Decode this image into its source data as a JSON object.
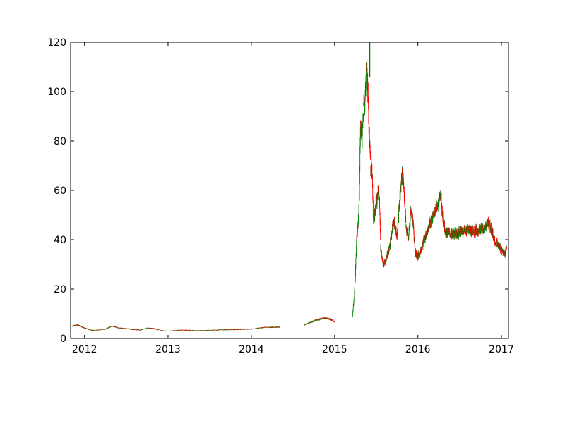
{
  "chart_data": {
    "type": "candlestick",
    "title": "",
    "xlabel": "",
    "ylabel": "",
    "ylim": [
      0,
      120
    ],
    "xlim": [
      "2011-11-01",
      "2017-02-01"
    ],
    "grid": false,
    "x_ticks": [
      "2012-01-01",
      "2013-01-01",
      "2014-01-01",
      "2015-01-01",
      "2016-01-01",
      "2017-01-01"
    ],
    "x_tick_labels": [
      "2012",
      "2013",
      "2014",
      "2015",
      "2016",
      "2017"
    ],
    "y_ticks": [
      0,
      20,
      40,
      60,
      80,
      100,
      120
    ],
    "y_tick_labels": [
      "0",
      "20",
      "40",
      "60",
      "80",
      "100",
      "120"
    ],
    "colors": {
      "up": "#008000",
      "down": "#ff0000",
      "axes": "#000000"
    },
    "series": [
      {
        "x": "2011-11-05",
        "y": 5.0
      },
      {
        "x": "2011-12-01",
        "y": 5.5
      },
      {
        "x": "2012-01-01",
        "y": 4.2
      },
      {
        "x": "2012-02-01",
        "y": 3.3
      },
      {
        "x": "2012-03-01",
        "y": 3.4
      },
      {
        "x": "2012-04-01",
        "y": 3.8
      },
      {
        "x": "2012-05-01",
        "y": 5.0
      },
      {
        "x": "2012-06-01",
        "y": 4.2
      },
      {
        "x": "2012-07-01",
        "y": 4.0
      },
      {
        "x": "2012-08-01",
        "y": 3.6
      },
      {
        "x": "2012-09-01",
        "y": 3.4
      },
      {
        "x": "2012-10-01",
        "y": 4.2
      },
      {
        "x": "2012-11-01",
        "y": 4.0
      },
      {
        "x": "2012-12-01",
        "y": 3.2
      },
      {
        "x": "2013-01-01",
        "y": 3.0
      },
      {
        "x": "2013-03-01",
        "y": 3.4
      },
      {
        "x": "2013-05-01",
        "y": 3.2
      },
      {
        "x": "2013-07-01",
        "y": 3.3
      },
      {
        "x": "2013-09-01",
        "y": 3.5
      },
      {
        "x": "2013-11-01",
        "y": 3.6
      },
      {
        "x": "2014-01-01",
        "y": 3.8
      },
      {
        "x": "2014-03-01",
        "y": 4.5
      },
      {
        "x": "2014-05-05",
        "y": 4.6
      },
      {
        "x": null,
        "y": null
      },
      {
        "x": "2014-08-20",
        "y": 5.5
      },
      {
        "x": "2014-10-01",
        "y": 7.0
      },
      {
        "x": "2014-11-01",
        "y": 8.0
      },
      {
        "x": "2014-12-01",
        "y": 8.3
      },
      {
        "x": "2015-01-01",
        "y": 6.8
      },
      {
        "x": null,
        "y": null
      },
      {
        "x": "2015-03-20",
        "y": 9.0
      },
      {
        "x": "2015-03-28",
        "y": 17.0
      },
      {
        "x": "2015-04-01",
        "y": 24.0
      },
      {
        "x": "2015-04-05",
        "y": 33.0
      },
      {
        "x": "2015-04-08",
        "y": 42.0
      },
      {
        "x": "2015-04-12",
        "y": 43.0
      },
      {
        "x": "2015-04-18",
        "y": 55.0
      },
      {
        "x": "2015-04-25",
        "y": 88.0
      },
      {
        "x": "2015-05-01",
        "y": 80.0
      },
      {
        "x": "2015-05-08",
        "y": 95.0
      },
      {
        "x": "2015-05-15",
        "y": 98.0
      },
      {
        "x": "2015-05-22",
        "y": 112.0
      },
      {
        "x": "2015-06-01",
        "y": 85.0
      },
      {
        "x": "2015-06-08",
        "y": 70.0
      },
      {
        "x": "2015-06-15",
        "y": 66.0
      },
      {
        "x": "2015-06-20",
        "y": 48.0
      },
      {
        "x": "2015-07-12",
        "y": 60.0
      },
      {
        "x": "2015-07-18",
        "y": 52.0
      },
      {
        "x": "2015-07-22",
        "y": 36.0
      },
      {
        "x": "2015-08-01",
        "y": 30.0
      },
      {
        "x": "2015-08-15",
        "y": 32.0
      },
      {
        "x": "2015-09-01",
        "y": 38.0
      },
      {
        "x": "2015-09-15",
        "y": 48.0
      },
      {
        "x": "2015-10-01",
        "y": 42.0
      },
      {
        "x": "2015-10-15",
        "y": 58.0
      },
      {
        "x": "2015-10-25",
        "y": 68.0
      },
      {
        "x": "2015-11-01",
        "y": 60.0
      },
      {
        "x": "2015-11-10",
        "y": 45.0
      },
      {
        "x": "2015-11-20",
        "y": 40.0
      },
      {
        "x": "2015-12-01",
        "y": 52.0
      },
      {
        "x": "2015-12-10",
        "y": 48.0
      },
      {
        "x": "2015-12-20",
        "y": 35.0
      },
      {
        "x": "2016-01-01",
        "y": 33.0
      },
      {
        "x": "2016-01-15",
        "y": 36.0
      },
      {
        "x": "2016-02-01",
        "y": 41.0
      },
      {
        "x": "2016-02-15",
        "y": 45.0
      },
      {
        "x": "2016-03-01",
        "y": 48.0
      },
      {
        "x": "2016-03-15",
        "y": 52.0
      },
      {
        "x": "2016-04-01",
        "y": 55.0
      },
      {
        "x": "2016-04-10",
        "y": 58.0
      },
      {
        "x": "2016-04-20",
        "y": 48.0
      },
      {
        "x": "2016-05-01",
        "y": 43.0
      },
      {
        "x": "2016-06-01",
        "y": 42.0
      },
      {
        "x": "2016-07-01",
        "y": 43.0
      },
      {
        "x": "2016-08-01",
        "y": 44.0
      },
      {
        "x": "2016-09-01",
        "y": 43.5
      },
      {
        "x": "2016-10-01",
        "y": 44.0
      },
      {
        "x": "2016-10-20",
        "y": 44.0
      },
      {
        "x": "2016-11-01",
        "y": 47.0
      },
      {
        "x": "2016-11-15",
        "y": 45.0
      },
      {
        "x": "2016-12-01",
        "y": 40.0
      },
      {
        "x": "2016-12-15",
        "y": 38.0
      },
      {
        "x": "2017-01-01",
        "y": 36.0
      },
      {
        "x": "2017-01-15",
        "y": 34.0
      },
      {
        "x": "2017-01-25",
        "y": 37.0
      }
    ]
  }
}
